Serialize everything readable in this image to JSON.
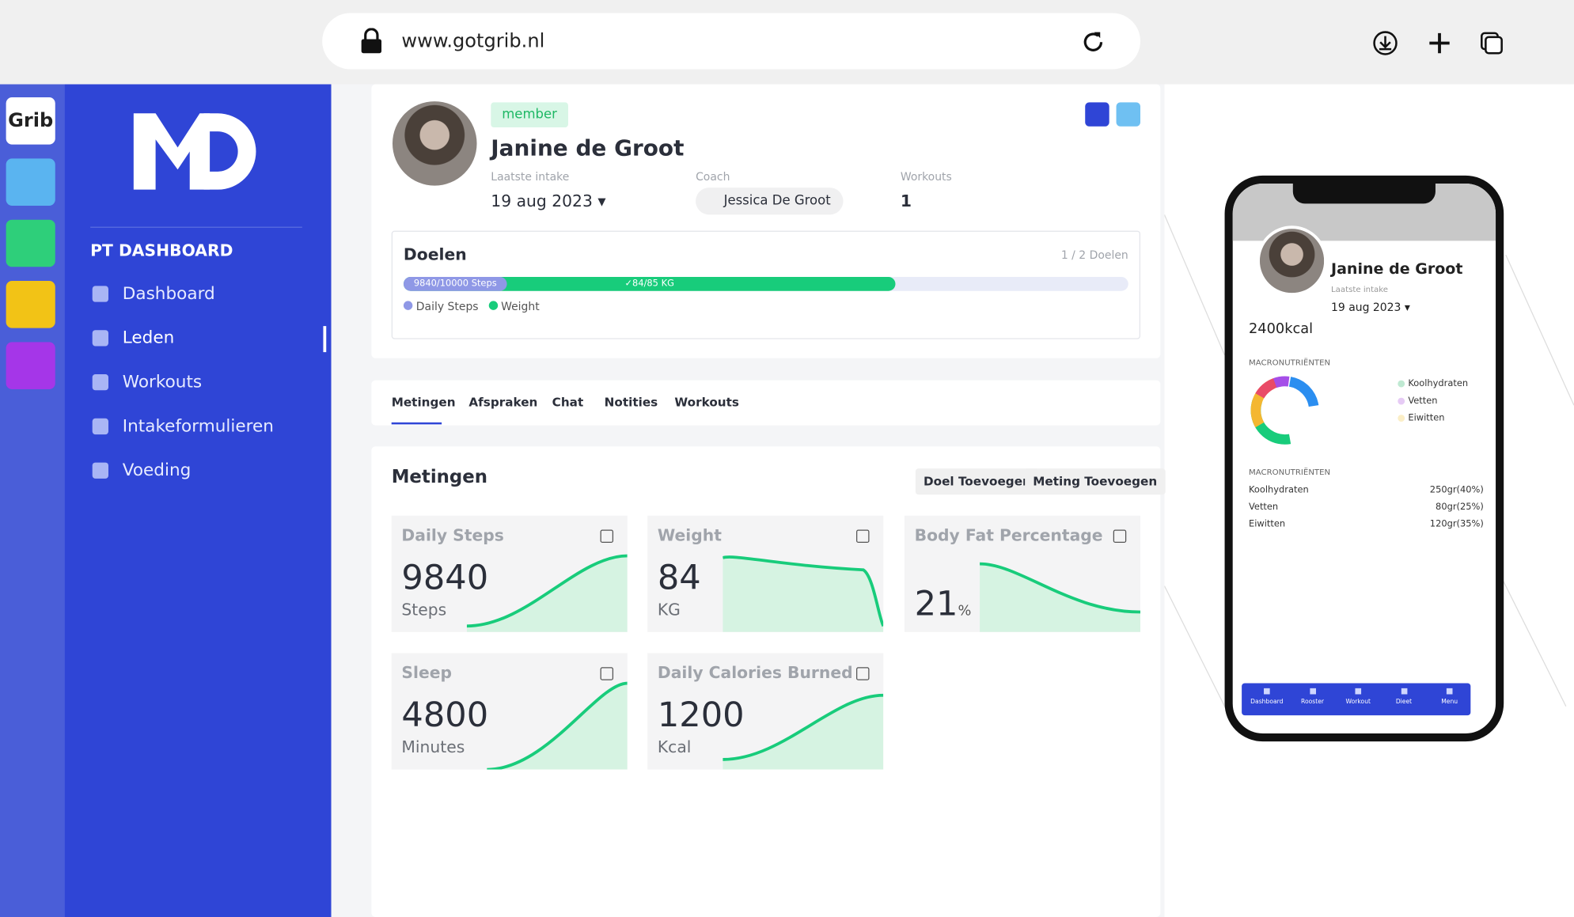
{
  "browser": {
    "url": "www.gotgrib.nl"
  },
  "app_rail": {
    "logo": "Grib"
  },
  "sidebar": {
    "section": "PT DASHBOARD",
    "nav": [
      "Dashboard",
      "Leden",
      "Workouts",
      "Intakeformulieren",
      "Voeding"
    ]
  },
  "profile": {
    "badge": "member",
    "name": "Janine de Groot",
    "fields": [
      {
        "label": "Laatste intake",
        "value": "19 aug 2023"
      },
      {
        "label": "Coach",
        "value": "Jessica De Groot"
      },
      {
        "label": "Workouts",
        "value": "1"
      }
    ]
  },
  "goals": {
    "title": "Doelen",
    "count": "1 / 2 Doelen",
    "bars": [
      "9840/10000 Steps",
      "84/85 KG"
    ],
    "legend": [
      "Daily Steps",
      "Weight"
    ]
  },
  "tabs": [
    "Metingen",
    "Afspraken",
    "Chat",
    "Notities",
    "Workouts"
  ],
  "measurements": {
    "title": "Metingen",
    "buttons": [
      "Doel Toevoegen",
      "Meting Toevoegen"
    ],
    "cards": [
      {
        "title": "Daily Steps",
        "value": "9840",
        "unit": "Steps"
      },
      {
        "title": "Weight",
        "value": "84",
        "unit": "KG"
      },
      {
        "title": "Body Fat Percentage",
        "value": "21",
        "unit": "%"
      },
      {
        "title": "Sleep",
        "value": "4800",
        "unit": "Minutes"
      },
      {
        "title": "Daily Calories Burned",
        "value": "1200",
        "unit": "Kcal"
      }
    ]
  },
  "phone": {
    "name": "Janine de Groot",
    "intake_label": "Laatste intake",
    "intake_date": "19 aug 2023",
    "kcal": "2400kcal",
    "macro_title": "MACRONUTRIËNTEN",
    "legend": [
      "Koolhydraten",
      "Vetten",
      "Eiwitten"
    ],
    "table_title": "MACRONUTRIËNTEN",
    "rows": [
      [
        "Koolhydraten",
        "250gr(40%)"
      ],
      [
        "Vetten",
        "80gr(25%)"
      ],
      [
        "Eiwitten",
        "120gr(35%)"
      ]
    ],
    "nav": [
      "Dashboard",
      "Rooster",
      "Workout",
      "Dieet",
      "Menu"
    ]
  }
}
